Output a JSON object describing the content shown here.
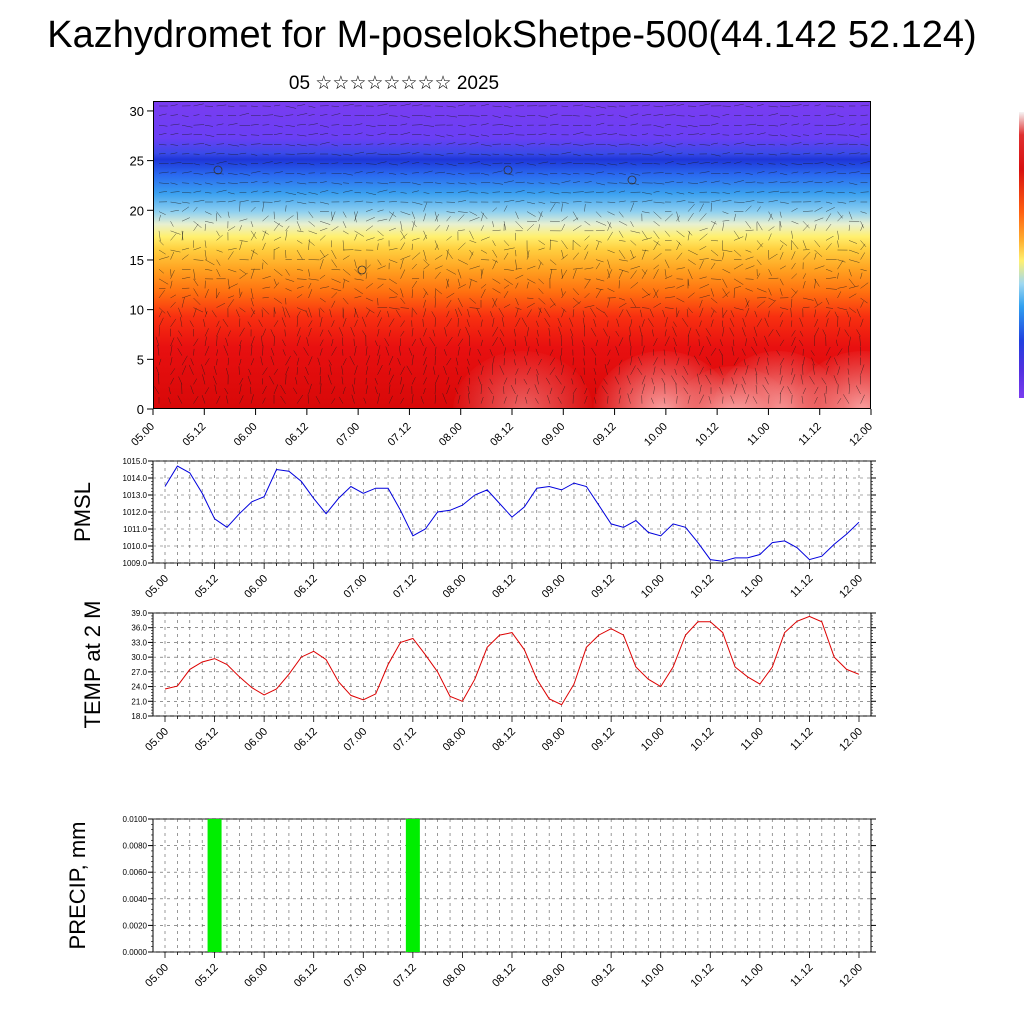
{
  "title": "Kazhydromet for M-poselokShetpe-500(44.142 52.124)",
  "subtitle": "05 ☆☆☆☆☆☆☆☆ 2025",
  "chart_data": [
    {
      "type": "heatmap",
      "x_ticks": [
        "05.00",
        "05.12",
        "06.00",
        "06.12",
        "07.00",
        "07.12",
        "08.00",
        "08.12",
        "09.00",
        "09.12",
        "10.00",
        "10.12",
        "11.00",
        "11.12",
        "12.00"
      ],
      "y_ticks": [
        "0",
        "5",
        "10",
        "15",
        "20",
        "25",
        "30"
      ],
      "ylim": [
        0,
        31
      ],
      "colors": {
        "top": "#7a3cf0",
        "mid": "#fff070",
        "bottom": "#d80808"
      }
    },
    {
      "type": "line",
      "ylabel": "PMSL",
      "ylim": [
        1009.0,
        1015.0
      ],
      "y_ticks": [
        "1009.0",
        "1010.0",
        "1011.0",
        "1012.0",
        "1013.0",
        "1014.0",
        "1015.0"
      ],
      "x_ticks": [
        "05.00",
        "05.12",
        "06.00",
        "06.12",
        "07.00",
        "07.12",
        "08.00",
        "08.12",
        "09.00",
        "09.12",
        "10.00",
        "10.12",
        "11.00",
        "11.12",
        "12.00"
      ],
      "color": "#0000dd",
      "values": [
        1013.5,
        1014.7,
        1014.3,
        1013.1,
        1011.6,
        1011.1,
        1011.9,
        1012.6,
        1012.9,
        1014.5,
        1014.4,
        1013.8,
        1012.8,
        1011.9,
        1012.8,
        1013.5,
        1013.1,
        1013.4,
        1013.4,
        1012.1,
        1010.6,
        1011.0,
        1012.0,
        1012.1,
        1012.4,
        1013.0,
        1013.3,
        1012.5,
        1011.7,
        1012.3,
        1013.4,
        1013.5,
        1013.3,
        1013.7,
        1013.5,
        1012.4,
        1011.3,
        1011.1,
        1011.5,
        1010.8,
        1010.6,
        1011.3,
        1011.1,
        1010.2,
        1009.2,
        1009.1,
        1009.3,
        1009.3,
        1009.5,
        1010.2,
        1010.3,
        1009.9,
        1009.2,
        1009.4,
        1010.1,
        1010.7,
        1011.4
      ]
    },
    {
      "type": "line",
      "ylabel": "TEMP at 2 M",
      "ylim": [
        18.0,
        39.0
      ],
      "y_ticks": [
        "18.0",
        "21.0",
        "24.0",
        "27.0",
        "30.0",
        "33.0",
        "36.0",
        "39.0"
      ],
      "x_ticks": [
        "05.00",
        "05.12",
        "06.00",
        "06.12",
        "07.00",
        "07.12",
        "08.00",
        "08.12",
        "09.00",
        "09.12",
        "10.00",
        "10.12",
        "11.00",
        "11.12",
        "12.00"
      ],
      "color": "#dd0000",
      "values": [
        23.5,
        24.1,
        27.5,
        29.0,
        29.7,
        28.5,
        26.0,
        23.8,
        22.3,
        23.5,
        26.5,
        30.0,
        31.2,
        29.5,
        25.0,
        22.2,
        21.3,
        22.5,
        28.5,
        33.0,
        33.8,
        30.5,
        27.0,
        22.0,
        21.0,
        25.5,
        32.0,
        34.5,
        35.0,
        31.5,
        25.5,
        21.5,
        20.3,
        24.5,
        32.0,
        34.5,
        35.8,
        34.5,
        28.0,
        25.5,
        24.0,
        28.0,
        34.5,
        37.2,
        37.2,
        35.0,
        28.0,
        26.0,
        24.5,
        28.0,
        35.0,
        37.3,
        38.3,
        37.2,
        30.0,
        27.5,
        26.5
      ]
    },
    {
      "type": "bar",
      "ylabel": "PRECIP, mm",
      "ylim": [
        0.0,
        0.01
      ],
      "y_ticks": [
        "0.0000",
        "0.0020",
        "0.0040",
        "0.0060",
        "0.0080",
        "0.0100"
      ],
      "x_ticks": [
        "05.00",
        "05.12",
        "06.00",
        "06.12",
        "07.00",
        "07.12",
        "08.00",
        "08.12",
        "09.00",
        "09.12",
        "10.00",
        "10.12",
        "11.00",
        "11.12",
        "12.00"
      ],
      "color": "#00ee00",
      "bars": [
        {
          "x": "05.12",
          "value": 0.01
        },
        {
          "x": "07.12",
          "value": 0.01
        }
      ]
    }
  ]
}
